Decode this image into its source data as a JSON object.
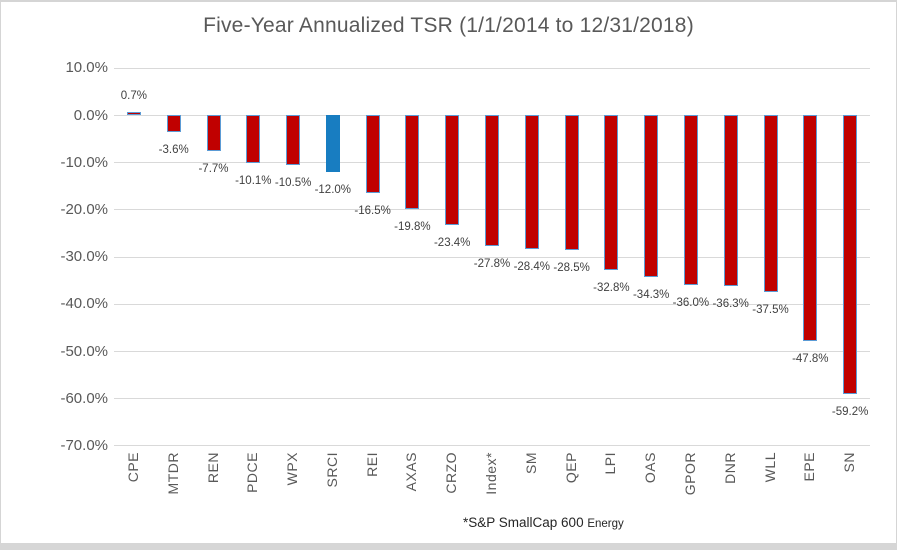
{
  "chart_data": {
    "type": "bar",
    "title": "Five-Year Annualized TSR (1/1/2014 to 12/31/2018)",
    "categories": [
      "CPE",
      "MTDR",
      "REN",
      "PDCE",
      "WPX",
      "SRCI",
      "REI",
      "AXAS",
      "CRZO",
      "Index*",
      "SM",
      "QEP",
      "LPI",
      "OAS",
      "GPOR",
      "DNR",
      "WLL",
      "EPE",
      "SN"
    ],
    "values": [
      0.7,
      -3.6,
      -7.7,
      -10.1,
      -10.5,
      -12.0,
      -16.5,
      -19.8,
      -23.4,
      -27.8,
      -28.4,
      -28.5,
      -32.8,
      -34.3,
      -36.0,
      -36.3,
      -37.5,
      -47.8,
      -59.2
    ],
    "value_labels": [
      "0.7%",
      "-3.6%",
      "-7.7%",
      "-10.1%",
      "-10.5%",
      "-12.0%",
      "-16.5%",
      "-19.8%",
      "-23.4%",
      "-27.8%",
      "-28.4%",
      "-28.5%",
      "-32.8%",
      "-34.3%",
      "-36.0%",
      "-36.3%",
      "-37.5%",
      "-47.8%",
      "-59.2%"
    ],
    "highlight_category": "SRCI",
    "y_axis": {
      "tick_labels": [
        "10.0%",
        "0.0%",
        "-10.0%",
        "-20.0%",
        "-30.0%",
        "-40.0%",
        "-50.0%",
        "-60.0%",
        "-70.0%"
      ],
      "tick_values": [
        10,
        0,
        -10,
        -20,
        -30,
        -40,
        -50,
        -60,
        -70
      ],
      "min": -70,
      "max": 10,
      "grid": true
    },
    "legend_position": "none",
    "footnote": {
      "main": "*S&P SmallCap 600",
      "suffix": "Energy"
    },
    "colors": {
      "bar_fill": "#c00000",
      "bar_border": "#5b9bd5",
      "highlight_fill": "#187dc1",
      "gridline": "#d9d9d9",
      "axis_text": "#595959",
      "title_text": "#595959",
      "data_label_text": "#404040"
    }
  }
}
